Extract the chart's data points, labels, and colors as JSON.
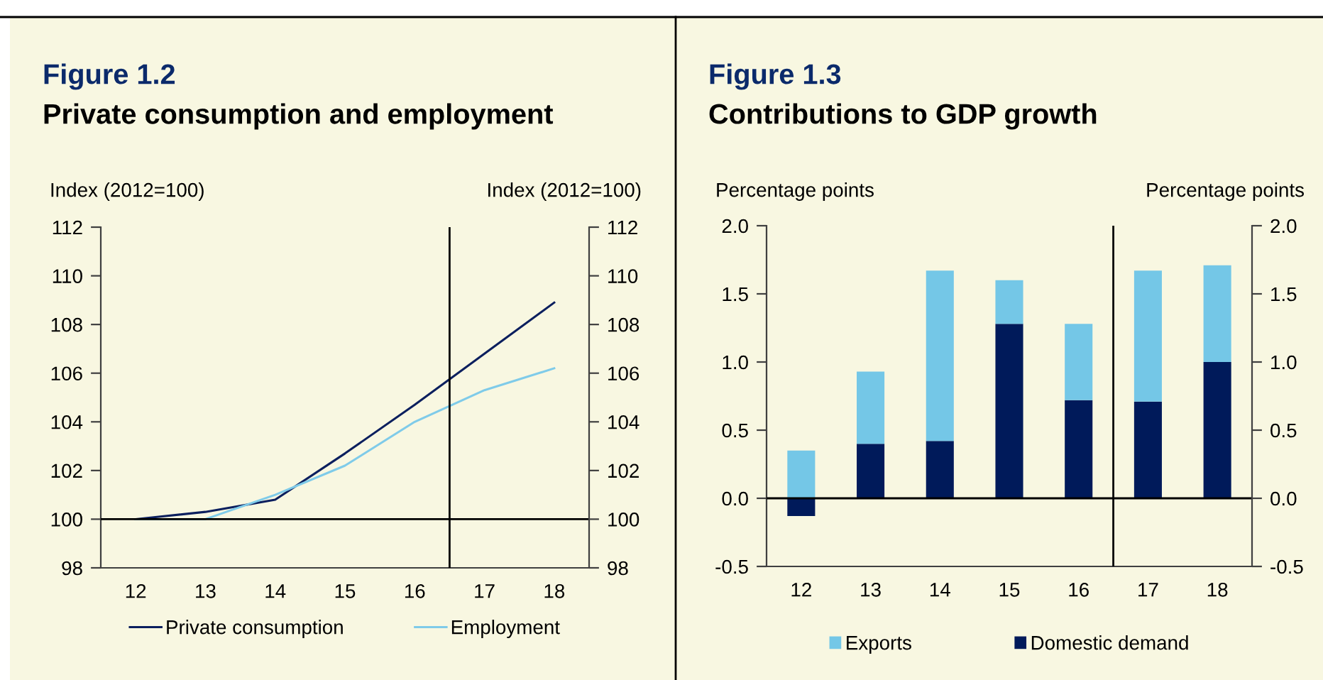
{
  "chart_data": [
    {
      "type": "line",
      "title": "Figure 1.2",
      "subtitle": "Private consumption and employment",
      "ylabel": "Index (2012=100)",
      "y2label": "Index (2012=100)",
      "x": [
        12,
        13,
        14,
        15,
        16,
        17,
        18
      ],
      "xlim": [
        11.5,
        18.5
      ],
      "xticks": [
        12,
        13,
        14,
        15,
        16,
        17,
        18
      ],
      "ylim": [
        98,
        112
      ],
      "yticks": [
        98,
        100,
        102,
        104,
        106,
        108,
        110,
        112
      ],
      "y2lim": [
        98,
        112
      ],
      "y2ticks": [
        98,
        100,
        102,
        104,
        106,
        108,
        110,
        112
      ],
      "series": [
        {
          "name": "Private consumption",
          "color": "#0b1f5e",
          "values": [
            100,
            100.3,
            100.8,
            102.7,
            104.7,
            106.8,
            108.9
          ]
        },
        {
          "name": "Employment",
          "color": "#7fcbe9",
          "values": [
            100,
            100,
            101.0,
            102.2,
            104.0,
            105.3,
            106.2
          ]
        }
      ],
      "ref_lines": [
        {
          "axis": "y",
          "value": 100,
          "color": "#000000"
        },
        {
          "axis": "x",
          "value": 16.5,
          "color": "#000000"
        }
      ],
      "legend": "bottom",
      "grid": false,
      "marker": "none",
      "line_style": "solid"
    },
    {
      "type": "bar",
      "stacked": true,
      "title": "Figure 1.3",
      "subtitle": "Contributions to GDP growth",
      "ylabel": "Percentage points",
      "y2label": "Percentage points",
      "x": [
        12,
        13,
        14,
        15,
        16,
        17,
        18
      ],
      "xlim": [
        11.5,
        18.5
      ],
      "xticks": [
        12,
        13,
        14,
        15,
        16,
        17,
        18
      ],
      "ylim": [
        -0.5,
        2.0
      ],
      "yticks": [
        {
          "value": -0.5,
          "label": "-0.5"
        },
        {
          "value": 0,
          "label": "0.0"
        },
        {
          "value": 0.5,
          "label": "0.5"
        },
        {
          "value": 1,
          "label": "1.0"
        },
        {
          "value": 1.5,
          "label": "1.5"
        },
        {
          "value": 2,
          "label": "2.0"
        }
      ],
      "y2lim": [
        -0.5,
        2.0
      ],
      "y2ticks": [
        {
          "value": -0.5,
          "label": "-0.5"
        },
        {
          "value": 0,
          "label": "0.0"
        },
        {
          "value": 0.5,
          "label": "0.5"
        },
        {
          "value": 1,
          "label": "1.0"
        },
        {
          "value": 1.5,
          "label": "1.5"
        },
        {
          "value": 2,
          "label": "2.0"
        }
      ],
      "series": [
        {
          "name": "Domestic demand",
          "color": "#001a5a",
          "values": [
            -0.13,
            0.4,
            0.42,
            1.28,
            0.72,
            0.71,
            1.0
          ]
        },
        {
          "name": "Exports",
          "color": "#74c7e7",
          "values": [
            0.35,
            0.53,
            1.25,
            0.32,
            0.56,
            0.96,
            0.71
          ]
        }
      ],
      "ref_lines": [
        {
          "axis": "y",
          "value": 0,
          "color": "#000000"
        },
        {
          "axis": "x",
          "value": 16.5,
          "color": "#000000"
        }
      ],
      "legend": "bottom",
      "grid": false
    }
  ]
}
